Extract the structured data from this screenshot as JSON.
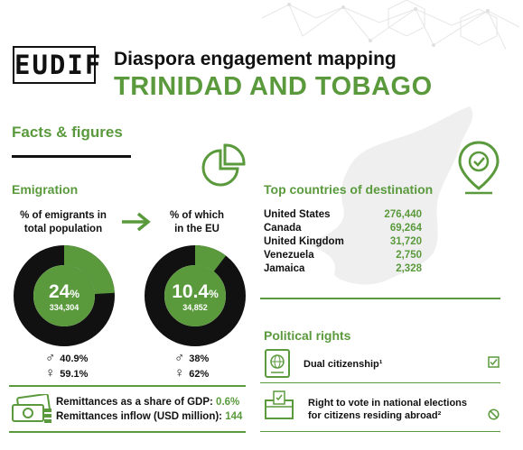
{
  "header": {
    "logo_text": "EUDIF",
    "title": "Diaspora engagement mapping",
    "country": "TRINIDAD AND TOBAGO"
  },
  "facts": {
    "heading": "Facts & figures"
  },
  "emigration": {
    "heading": "Emigration",
    "left": {
      "label_line1": "% of emigrants in",
      "label_line2": "total population",
      "percent": "24",
      "percent_unit": "%",
      "count": "334,304",
      "share": 0.24,
      "male": "40.9%",
      "female": "59.1%"
    },
    "right": {
      "label_line1": "% of which",
      "label_line2": "in the EU",
      "percent": "10.4",
      "percent_unit": "%",
      "count": "34,852",
      "share": 0.104,
      "male": "38%",
      "female": "62%"
    }
  },
  "destinations": {
    "heading": "Top countries of destination",
    "rows": [
      {
        "country": "United States",
        "value": "276,440"
      },
      {
        "country": "Canada",
        "value": "69,264"
      },
      {
        "country": "United Kingdom",
        "value": "31,720"
      },
      {
        "country": "Venezuela",
        "value": "2,750"
      },
      {
        "country": "Jamaica",
        "value": "2,328"
      }
    ]
  },
  "political_rights": {
    "heading": "Political rights",
    "dual_citizenship": "Dual citizenship¹",
    "vote_line1": "Right to vote in national elections",
    "vote_line2": "for citizens residing abroad²"
  },
  "remittances": {
    "gdp_label": "Remittances as a share of GDP:",
    "gdp_value": "0.6%",
    "inflow_label": "Remittances inflow (USD million):",
    "inflow_value": "144"
  },
  "colors": {
    "accent": "#5a9a3d",
    "dark": "#111111"
  }
}
